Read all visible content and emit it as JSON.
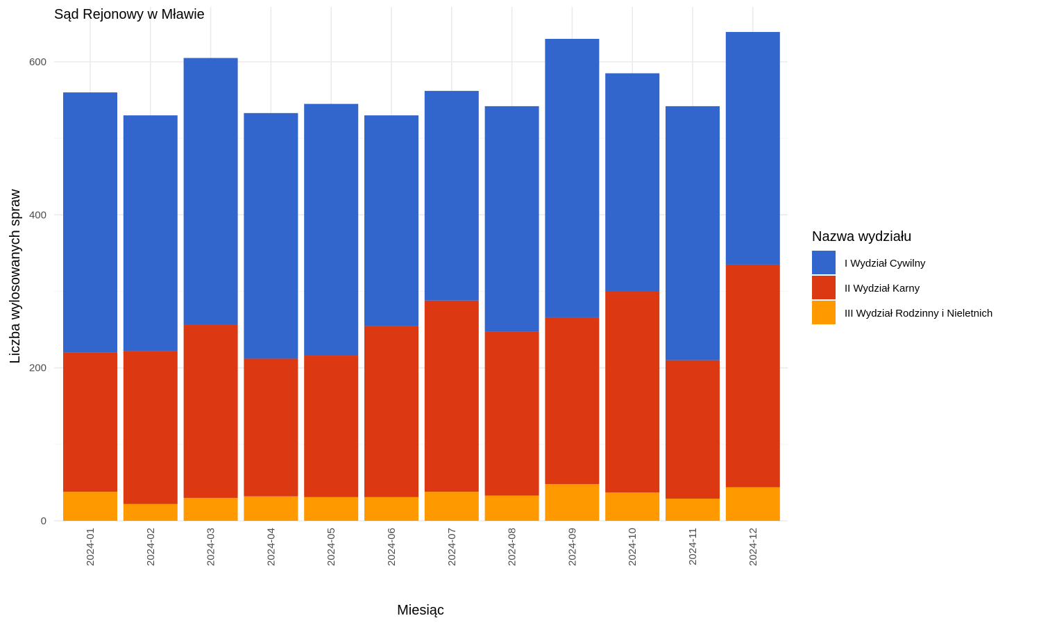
{
  "chart_data": {
    "type": "bar",
    "stacked": true,
    "title": "Sąd Rejonowy w Mławie",
    "xlabel": "Miesiąc",
    "ylabel": "Liczba wylosowanych spraw",
    "ylim": [
      0,
      650
    ],
    "yticks": [
      0,
      200,
      400,
      600
    ],
    "grid": true,
    "legend_title": "Nazwa wydziału",
    "legend_position": "right",
    "categories": [
      "2024-01",
      "2024-02",
      "2024-03",
      "2024-04",
      "2024-05",
      "2024-06",
      "2024-07",
      "2024-08",
      "2024-09",
      "2024-10",
      "2024-11",
      "2024-12"
    ],
    "series": [
      {
        "name": "III Wydział Rodzinny i Nieletnich",
        "color": "#FF9900",
        "values": [
          38,
          22,
          30,
          32,
          31,
          31,
          38,
          33,
          48,
          37,
          29,
          44
        ]
      },
      {
        "name": "II Wydział Karny",
        "color": "#DC3912",
        "values": [
          182,
          200,
          226,
          180,
          185,
          224,
          250,
          214,
          218,
          263,
          181,
          291
        ]
      },
      {
        "name": "I Wydział Cywilny",
        "color": "#3366CC",
        "values": [
          340,
          308,
          349,
          321,
          329,
          275,
          274,
          295,
          364,
          285,
          332,
          304
        ]
      }
    ],
    "legend_order": [
      "I Wydział Cywilny",
      "II Wydział Karny",
      "III Wydział Rodzinny i Nieletnich"
    ]
  }
}
